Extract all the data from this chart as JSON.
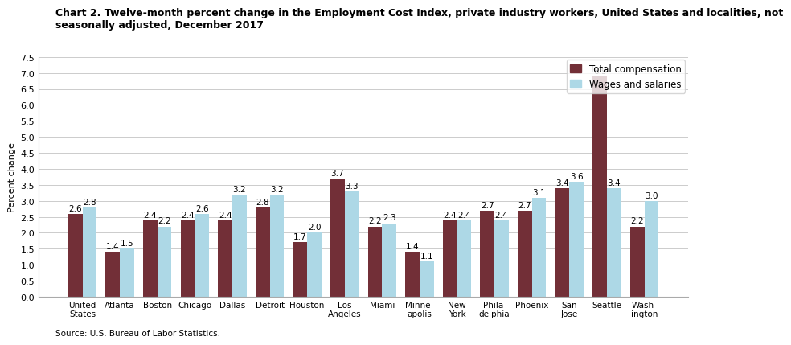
{
  "title_line1": "Chart 2. Twelve-month percent change in the Employment Cost Index, private industry workers, United States and localities, not",
  "title_line2": "seasonally adjusted, December 2017",
  "ylabel": "Percent change",
  "source": "Source: U.S. Bureau of Labor Statistics.",
  "categories": [
    "United\nStates",
    "Atlanta",
    "Boston",
    "Chicago",
    "Dallas",
    "Detroit",
    "Houston",
    "Los\nAngeles",
    "Miami",
    "Minne-\napolis",
    "New\nYork",
    "Phila-\ndelphia",
    "Phoenix",
    "San\nJose",
    "Seattle",
    "Wash-\nington"
  ],
  "total_compensation": [
    2.6,
    1.4,
    2.4,
    2.4,
    2.4,
    2.8,
    1.7,
    3.7,
    2.2,
    1.4,
    2.4,
    2.7,
    2.7,
    3.4,
    6.9,
    2.2
  ],
  "wages_salaries": [
    2.8,
    1.5,
    2.2,
    2.6,
    3.2,
    3.2,
    2.0,
    3.3,
    2.3,
    1.1,
    2.4,
    2.4,
    3.1,
    3.6,
    3.4,
    3.0
  ],
  "total_compensation_color": "#722F37",
  "wages_salaries_color": "#ADD8E6",
  "ylim": [
    0,
    7.5
  ],
  "yticks": [
    0.0,
    0.5,
    1.0,
    1.5,
    2.0,
    2.5,
    3.0,
    3.5,
    4.0,
    4.5,
    5.0,
    5.5,
    6.0,
    6.5,
    7.0,
    7.5
  ],
  "bar_width": 0.38,
  "label_fontsize": 7.5,
  "tick_fontsize": 8,
  "title_fontsize": 9,
  "legend_fontsize": 8.5,
  "background_color": "#ffffff",
  "grid_color": "#cccccc"
}
